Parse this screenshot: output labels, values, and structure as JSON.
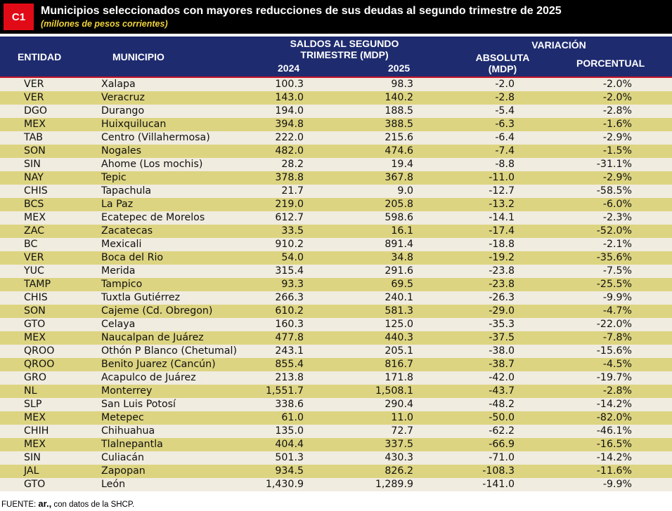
{
  "badge": "C1",
  "title": "Municipios  seleccionados con mayores reducciones de sus deudas al segundo trimestre de 2025",
  "subtitle": "(millones de pesos corrientes)",
  "headers": {
    "entidad": "ENTIDAD",
    "municipio": "MUNICIPIO",
    "saldos_line1": "SALDOS AL SEGUNDO",
    "saldos_line2": "TRIMESTRE (MDP)",
    "y2024": "2024",
    "y2025": "2025",
    "variacion": "VARIACIÓN",
    "absoluta_line1": "ABSOLUTA",
    "absoluta_line2": "(MDP)",
    "porcentual": "PORCENTUAL"
  },
  "rows": [
    {
      "entidad": "VER",
      "municipio": "Xalapa",
      "v2024": "100.3",
      "v2025": "98.3",
      "absoluta": "-2.0",
      "porcentual": "-2.0%"
    },
    {
      "entidad": "VER",
      "municipio": "Veracruz",
      "v2024": "143.0",
      "v2025": "140.2",
      "absoluta": "-2.8",
      "porcentual": "-2.0%"
    },
    {
      "entidad": "DGO",
      "municipio": "Durango",
      "v2024": "194.0",
      "v2025": "188.5",
      "absoluta": "-5.4",
      "porcentual": "-2.8%"
    },
    {
      "entidad": "MEX",
      "municipio": "Huixquilucan",
      "v2024": "394.8",
      "v2025": "388.5",
      "absoluta": "-6.3",
      "porcentual": "-1.6%"
    },
    {
      "entidad": "TAB",
      "municipio": "Centro (Villahermosa)",
      "v2024": "222.0",
      "v2025": "215.6",
      "absoluta": "-6.4",
      "porcentual": "-2.9%"
    },
    {
      "entidad": "SON",
      "municipio": "Nogales",
      "v2024": "482.0",
      "v2025": "474.6",
      "absoluta": "-7.4",
      "porcentual": "-1.5%"
    },
    {
      "entidad": "SIN",
      "municipio": "Ahome (Los mochis)",
      "v2024": "28.2",
      "v2025": "19.4",
      "absoluta": "-8.8",
      "porcentual": "-31.1%"
    },
    {
      "entidad": "NAY",
      "municipio": "Tepic",
      "v2024": "378.8",
      "v2025": "367.8",
      "absoluta": "-11.0",
      "porcentual": "-2.9%"
    },
    {
      "entidad": "CHIS",
      "municipio": "Tapachula",
      "v2024": "21.7",
      "v2025": "9.0",
      "absoluta": "-12.7",
      "porcentual": "-58.5%"
    },
    {
      "entidad": "BCS",
      "municipio": "La Paz",
      "v2024": "219.0",
      "v2025": "205.8",
      "absoluta": "-13.2",
      "porcentual": "-6.0%"
    },
    {
      "entidad": "MEX",
      "municipio": "Ecatepec de Morelos",
      "v2024": "612.7",
      "v2025": "598.6",
      "absoluta": "-14.1",
      "porcentual": "-2.3%"
    },
    {
      "entidad": "ZAC",
      "municipio": "Zacatecas",
      "v2024": "33.5",
      "v2025": "16.1",
      "absoluta": "-17.4",
      "porcentual": "-52.0%"
    },
    {
      "entidad": "BC",
      "municipio": "Mexicali",
      "v2024": "910.2",
      "v2025": "891.4",
      "absoluta": "-18.8",
      "porcentual": "-2.1%"
    },
    {
      "entidad": "VER",
      "municipio": "Boca del Rio",
      "v2024": "54.0",
      "v2025": "34.8",
      "absoluta": "-19.2",
      "porcentual": "-35.6%"
    },
    {
      "entidad": "YUC",
      "municipio": "Merida",
      "v2024": "315.4",
      "v2025": "291.6",
      "absoluta": "-23.8",
      "porcentual": "-7.5%"
    },
    {
      "entidad": "TAMP",
      "municipio": "Tampico",
      "v2024": "93.3",
      "v2025": "69.5",
      "absoluta": "-23.8",
      "porcentual": "-25.5%"
    },
    {
      "entidad": "CHIS",
      "municipio": "Tuxtla Gutiérrez",
      "v2024": "266.3",
      "v2025": "240.1",
      "absoluta": "-26.3",
      "porcentual": "-9.9%"
    },
    {
      "entidad": "SON",
      "municipio": "Cajeme (Cd. Obregon)",
      "v2024": "610.2",
      "v2025": "581.3",
      "absoluta": "-29.0",
      "porcentual": "-4.7%"
    },
    {
      "entidad": "GTO",
      "municipio": "Celaya",
      "v2024": "160.3",
      "v2025": "125.0",
      "absoluta": "-35.3",
      "porcentual": "-22.0%"
    },
    {
      "entidad": "MEX",
      "municipio": "Naucalpan de Juárez",
      "v2024": "477.8",
      "v2025": "440.3",
      "absoluta": "-37.5",
      "porcentual": "-7.8%"
    },
    {
      "entidad": "QROO",
      "municipio": "Othón P Blanco (Chetumal)",
      "v2024": "243.1",
      "v2025": "205.1",
      "absoluta": "-38.0",
      "porcentual": "-15.6%"
    },
    {
      "entidad": "QROO",
      "municipio": "Benito Juarez (Cancún)",
      "v2024": "855.4",
      "v2025": "816.7",
      "absoluta": "-38.7",
      "porcentual": "-4.5%"
    },
    {
      "entidad": "GRO",
      "municipio": "Acapulco de Juárez",
      "v2024": "213.8",
      "v2025": "171.8",
      "absoluta": "-42.0",
      "porcentual": "-19.7%"
    },
    {
      "entidad": "NL",
      "municipio": "Monterrey",
      "v2024": "1,551.7",
      "v2025": "1,508.1",
      "absoluta": "-43.7",
      "porcentual": "-2.8%"
    },
    {
      "entidad": "SLP",
      "municipio": "San Luis Potosí",
      "v2024": "338.6",
      "v2025": "290.4",
      "absoluta": "-48.2",
      "porcentual": "-14.2%"
    },
    {
      "entidad": "MEX",
      "municipio": "Metepec",
      "v2024": "61.0",
      "v2025": "11.0",
      "absoluta": "-50.0",
      "porcentual": "-82.0%"
    },
    {
      "entidad": "CHIH",
      "municipio": "Chihuahua",
      "v2024": "135.0",
      "v2025": "72.7",
      "absoluta": "-62.2",
      "porcentual": "-46.1%"
    },
    {
      "entidad": "MEX",
      "municipio": "Tlalnepantla",
      "v2024": "404.4",
      "v2025": "337.5",
      "absoluta": "-66.9",
      "porcentual": "-16.5%"
    },
    {
      "entidad": "SIN",
      "municipio": "Culiacán",
      "v2024": "501.3",
      "v2025": "430.3",
      "absoluta": "-71.0",
      "porcentual": "-14.2%"
    },
    {
      "entidad": "JAL",
      "municipio": "Zapopan",
      "v2024": "934.5",
      "v2025": "826.2",
      "absoluta": "-108.3",
      "porcentual": "-11.6%"
    },
    {
      "entidad": "GTO",
      "municipio": "León",
      "v2024": "1,430.9",
      "v2025": "1,289.9",
      "absoluta": "-141.0",
      "porcentual": "-9.9%"
    }
  ],
  "source": {
    "prefix": "FUENTE: ",
    "brand": "ar.,",
    "suffix": " con datos de la SHCP."
  },
  "colors": {
    "header_bg": "#1e2b6f",
    "row_light": "#f0ece0",
    "row_gold": "#ddd481",
    "badge_red": "#e10b17",
    "subtitle_yellow": "#f0d23a"
  }
}
